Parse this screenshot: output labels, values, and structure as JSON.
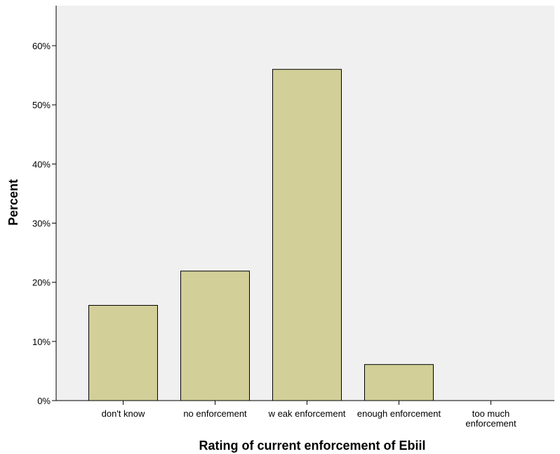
{
  "chart_data": {
    "type": "bar",
    "title": "",
    "xlabel": "Rating of current enforcement of Ebiil",
    "ylabel": "Percent",
    "categories": [
      [
        "don't know"
      ],
      [
        "no enforcement"
      ],
      [
        "w eak enforcement"
      ],
      [
        "enough enforcement"
      ],
      [
        "too much",
        "enforcement"
      ]
    ],
    "values": [
      16.1,
      21.9,
      56.0,
      6.1,
      0.0
    ],
    "ylim": [
      0,
      67
    ],
    "yticks": [
      {
        "value": 0,
        "label": "0%"
      },
      {
        "value": 10,
        "label": "10%"
      },
      {
        "value": 20,
        "label": "20%"
      },
      {
        "value": 30,
        "label": "30%"
      },
      {
        "value": 40,
        "label": "40%"
      },
      {
        "value": 50,
        "label": "50%"
      },
      {
        "value": 60,
        "label": "60%"
      }
    ],
    "grid": false,
    "legend": "none",
    "colors": {
      "plot_background": "#f0f0f0",
      "bar_fill": "#d3cf99",
      "bar_stroke": "#000000"
    }
  }
}
